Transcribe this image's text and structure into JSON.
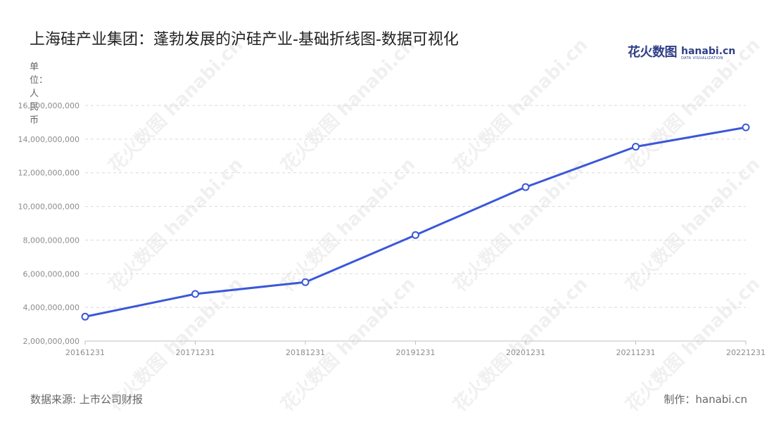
{
  "title": "上海硅产业集团：蓬勃发展的沪硅产业-基础折线图-数据可视化",
  "logo": {
    "cn": "花火数图",
    "en": "hanabi.cn",
    "sub": "DATA VISUALIZATION"
  },
  "unit_label": "单位：人民币",
  "watermark_text": "花火数图 hanabi.cn",
  "footer": {
    "source": "数据来源: 上市公司财报",
    "maker": "制作：hanabi.cn"
  },
  "colors": {
    "line": "#3b57d9",
    "grid": "#d9d9d9",
    "axis": "#bfbfbf",
    "text": "#8c8c8c"
  },
  "chart_data": {
    "type": "line",
    "categories": [
      "20161231",
      "20171231",
      "20181231",
      "20191231",
      "20201231",
      "20211231",
      "20221231"
    ],
    "values": [
      3450000000,
      4800000000,
      5500000000,
      8300000000,
      11150000000,
      13550000000,
      14700000000
    ],
    "yticks": [
      "2,000,000,000",
      "4,000,000,000",
      "6,000,000,000",
      "8,000,000,000",
      "10,000,000,000",
      "12,000,000,000",
      "14,000,000,000",
      "16,000,000,000"
    ],
    "ylim": [
      2000000000,
      16000000000
    ],
    "grid": true,
    "legend": false
  }
}
